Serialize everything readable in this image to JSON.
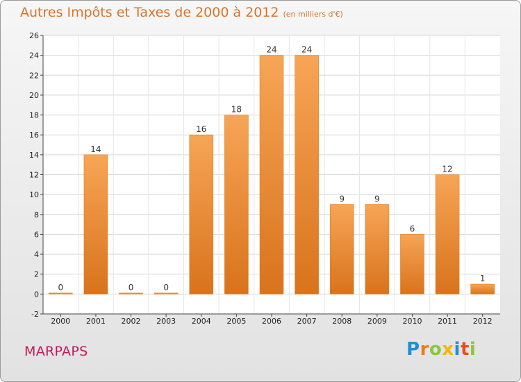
{
  "header": {
    "title": "Autres Impôts et Taxes de 2000 à 2012",
    "subtitle": "(en milliers d'€)"
  },
  "commune": "MARPAPS",
  "logo": {
    "letters": [
      "P",
      "r",
      "o",
      "x",
      "i",
      "t",
      "i"
    ],
    "colors": [
      "#1e90d6",
      "#f07a1a",
      "#8cc63f",
      "#f2b705",
      "#1e90d6",
      "#e84e1b",
      "#8cc63f"
    ]
  },
  "chart_data": {
    "type": "bar",
    "title": "Autres Impôts et Taxes de 2000 à 2012",
    "subtitle": "(en milliers d'€)",
    "categories": [
      "2000",
      "2001",
      "2002",
      "2003",
      "2004",
      "2005",
      "2006",
      "2007",
      "2008",
      "2009",
      "2010",
      "2011",
      "2012"
    ],
    "values": [
      0,
      14,
      0,
      0,
      16,
      18,
      24,
      24,
      9,
      9,
      6,
      12,
      1
    ],
    "data_labels": [
      "0",
      "14",
      "0",
      "0",
      "16",
      "18",
      "24",
      "24",
      "9",
      "9",
      "6",
      "12",
      "1"
    ],
    "ylim": [
      -2,
      26
    ],
    "yticks": [
      -2,
      0,
      2,
      4,
      6,
      8,
      10,
      12,
      14,
      16,
      18,
      20,
      22,
      24,
      26
    ],
    "grid": true,
    "bar_color": "#f0902f",
    "bar_color_dark": "#d9731c"
  }
}
